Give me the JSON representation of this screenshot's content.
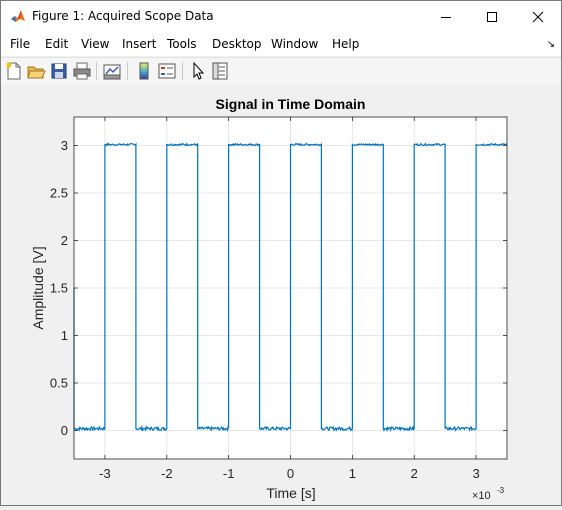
{
  "window": {
    "title": "Figure 1: Acquired Scope Data"
  },
  "menubar": {
    "items": [
      "File",
      "Edit",
      "View",
      "Insert",
      "Tools",
      "Desktop",
      "Window",
      "Help"
    ]
  },
  "toolbar": {
    "buttons": [
      "new-figure-icon",
      "open-file-icon",
      "save-icon",
      "print-icon",
      "link-plot-icon",
      "insert-colorbar-icon",
      "insert-legend-icon",
      "edit-plot-icon",
      "property-inspector-icon"
    ]
  },
  "chart_data": {
    "type": "line",
    "title": "Signal in Time Domain",
    "xlabel": "Time [s]",
    "ylabel": "Amplitude [V]",
    "x_exponent_label": "×10",
    "x_exponent_power": "-3",
    "xlim": [
      -3.5,
      3.5
    ],
    "ylim": [
      -0.3,
      3.3
    ],
    "xticks": [
      "-3",
      "-2",
      "-1",
      "0",
      "1",
      "2",
      "3"
    ],
    "xtick_values": [
      -3,
      -2,
      -1,
      0,
      1,
      2,
      3
    ],
    "yticks": [
      "0",
      "0.5",
      "1",
      "1.5",
      "2",
      "2.5",
      "3"
    ],
    "ytick_values": [
      0,
      0.5,
      1,
      1.5,
      2,
      2.5,
      3
    ],
    "grid": true,
    "line_color": "#0072bd",
    "series": [
      {
        "low_level": 0.02,
        "high_level": 3.01,
        "rising_edges": [
          -3.0,
          -2.0,
          -1.0,
          0.0,
          1.0,
          2.0,
          3.0
        ],
        "falling_edges": [
          -2.5,
          -1.5,
          -0.5,
          0.5,
          1.5,
          2.5
        ],
        "initial_edge": -3.5
      }
    ]
  }
}
